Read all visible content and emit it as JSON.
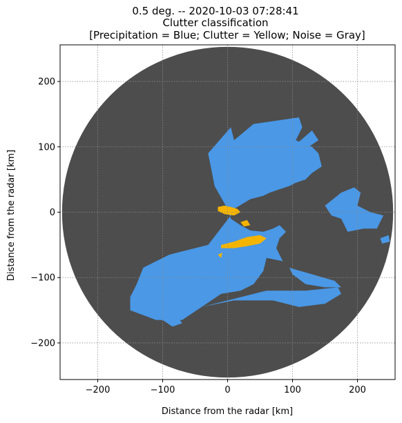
{
  "chart_data": {
    "type": "heatmap",
    "title_lines": [
      "0.5 deg. -- 2020-10-03 07:28:41",
      "Clutter classification",
      "[Precipitation = Blue; Clutter = Yellow; Noise = Gray]"
    ],
    "xlabel": "Distance from the radar [km]",
    "ylabel": "Distance from the radar [km]",
    "xlim": [
      -258,
      258
    ],
    "ylim": [
      -256,
      256
    ],
    "xticks": [
      -200,
      -100,
      0,
      100,
      200
    ],
    "yticks": [
      -200,
      -100,
      0,
      100,
      200
    ],
    "xtick_labels": [
      "−200",
      "−100",
      "0",
      "100",
      "200"
    ],
    "ytick_labels": [
      "−200",
      "−100",
      "0",
      "100",
      "200"
    ],
    "grid": true,
    "radar_range_km": 255,
    "classes": [
      {
        "name": "Precipitation",
        "color": "#4a98e6"
      },
      {
        "name": "Clutter",
        "color": "#f4b400"
      },
      {
        "name": "Noise",
        "color": "#4d4d4d"
      }
    ],
    "regions": {
      "precipitation": [
        [
          [
            -30,
            90
          ],
          [
            5,
            130
          ],
          [
            10,
            110
          ],
          [
            40,
            135
          ],
          [
            75,
            140
          ],
          [
            110,
            145
          ],
          [
            115,
            130
          ],
          [
            105,
            110
          ],
          [
            130,
            100
          ],
          [
            140,
            90
          ],
          [
            145,
            70
          ],
          [
            130,
            60
          ],
          [
            120,
            50
          ],
          [
            105,
            45
          ],
          [
            95,
            40
          ],
          [
            80,
            35
          ],
          [
            65,
            30
          ],
          [
            55,
            25
          ],
          [
            35,
            20
          ],
          [
            10,
            5
          ],
          [
            5,
            -5
          ],
          [
            -30,
            -50
          ],
          [
            -90,
            -65
          ],
          [
            -110,
            -75
          ],
          [
            -130,
            -85
          ],
          [
            -140,
            -110
          ],
          [
            -150,
            -130
          ],
          [
            -150,
            -150
          ],
          [
            -110,
            -165
          ],
          [
            -70,
            -165
          ],
          [
            -40,
            -145
          ],
          [
            -10,
            -125
          ],
          [
            20,
            -120
          ],
          [
            40,
            -110
          ],
          [
            55,
            -90
          ],
          [
            60,
            -70
          ],
          [
            85,
            -75
          ],
          [
            75,
            -55
          ],
          [
            80,
            -40
          ],
          [
            90,
            -30
          ],
          [
            80,
            -20
          ],
          [
            70,
            -25
          ],
          [
            55,
            -30
          ],
          [
            35,
            -28
          ],
          [
            20,
            -20
          ],
          [
            5,
            -10
          ],
          [
            0,
            5
          ],
          [
            -20,
            40
          ]
        ],
        [
          [
            95,
            95
          ],
          [
            130,
            125
          ],
          [
            140,
            110
          ],
          [
            125,
            100
          ]
        ],
        [
          [
            -40,
            -145
          ],
          [
            20,
            -130
          ],
          [
            60,
            -120
          ],
          [
            120,
            -120
          ],
          [
            170,
            -115
          ],
          [
            175,
            -125
          ],
          [
            150,
            -140
          ],
          [
            110,
            -145
          ],
          [
            70,
            -135
          ],
          [
            40,
            -135
          ],
          [
            10,
            -135
          ]
        ],
        [
          [
            150,
            10
          ],
          [
            175,
            30
          ],
          [
            195,
            38
          ],
          [
            205,
            30
          ],
          [
            200,
            10
          ],
          [
            220,
            0
          ],
          [
            240,
            -5
          ],
          [
            230,
            -25
          ],
          [
            210,
            -25
          ],
          [
            185,
            -30
          ],
          [
            175,
            -10
          ],
          [
            160,
            -5
          ]
        ],
        [
          [
            95,
            -85
          ],
          [
            130,
            -95
          ],
          [
            165,
            -105
          ],
          [
            175,
            -115
          ],
          [
            150,
            -115
          ],
          [
            120,
            -110
          ],
          [
            100,
            -95
          ]
        ],
        [
          [
            -115,
            -155
          ],
          [
            -85,
            -175
          ],
          [
            -70,
            -170
          ],
          [
            -80,
            -155
          ]
        ],
        [
          [
            235,
            -40
          ],
          [
            248,
            -35
          ],
          [
            250,
            -45
          ],
          [
            238,
            -48
          ]
        ],
        [
          [
            -130,
            -110
          ],
          [
            -125,
            -120
          ],
          [
            -120,
            -130
          ],
          [
            -135,
            -125
          ]
        ]
      ],
      "clutter": [
        [
          [
            -15,
            8
          ],
          [
            -5,
            10
          ],
          [
            5,
            8
          ],
          [
            15,
            5
          ],
          [
            20,
            0
          ],
          [
            10,
            -5
          ],
          [
            -5,
            -3
          ],
          [
            -15,
            2
          ]
        ],
        [
          [
            -10,
            -50
          ],
          [
            10,
            -45
          ],
          [
            30,
            -38
          ],
          [
            50,
            -35
          ],
          [
            60,
            -40
          ],
          [
            50,
            -48
          ],
          [
            30,
            -52
          ],
          [
            10,
            -55
          ],
          [
            -10,
            -55
          ]
        ],
        [
          [
            20,
            -15
          ],
          [
            30,
            -12
          ],
          [
            35,
            -20
          ],
          [
            25,
            -22
          ]
        ],
        [
          [
            -15,
            -65
          ],
          [
            -8,
            -62
          ],
          [
            -10,
            -70
          ]
        ]
      ]
    }
  }
}
